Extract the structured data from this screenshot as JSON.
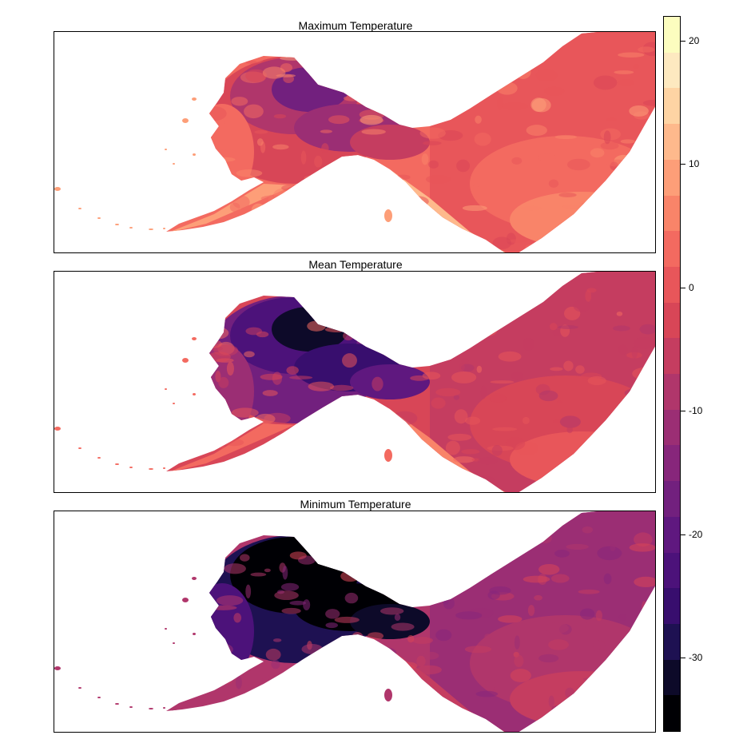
{
  "panels": [
    {
      "title": "Maximum Temperature",
      "base": 5,
      "arctic": 14,
      "range": 10,
      "coast": 4
    },
    {
      "title": "Mean Temperature",
      "base": 3,
      "arctic": 9,
      "range": 6,
      "coast": 2
    },
    {
      "title": "Minimum Temperature",
      "base": 1,
      "arctic": 5,
      "range": 2,
      "coast": -2
    }
  ],
  "colorbar": {
    "min": -36,
    "max": 22,
    "ticks": [
      20,
      10,
      0,
      -10,
      -20,
      -30
    ],
    "tick_labels": [
      "20",
      "10",
      "0",
      "-10",
      "-20",
      "-30"
    ],
    "colors": [
      "#000004",
      "#0d0a29",
      "#1e1152",
      "#380e6e",
      "#4c127a",
      "#5f187f",
      "#72207e",
      "#87267b",
      "#9b2e74",
      "#b0366b",
      "#c53d60",
      "#d84657",
      "#e8565a",
      "#f36a60",
      "#f98469",
      "#fd9e78",
      "#feb98c",
      "#fed4a4",
      "#fde9c0",
      "#fcfdbf"
    ]
  }
}
